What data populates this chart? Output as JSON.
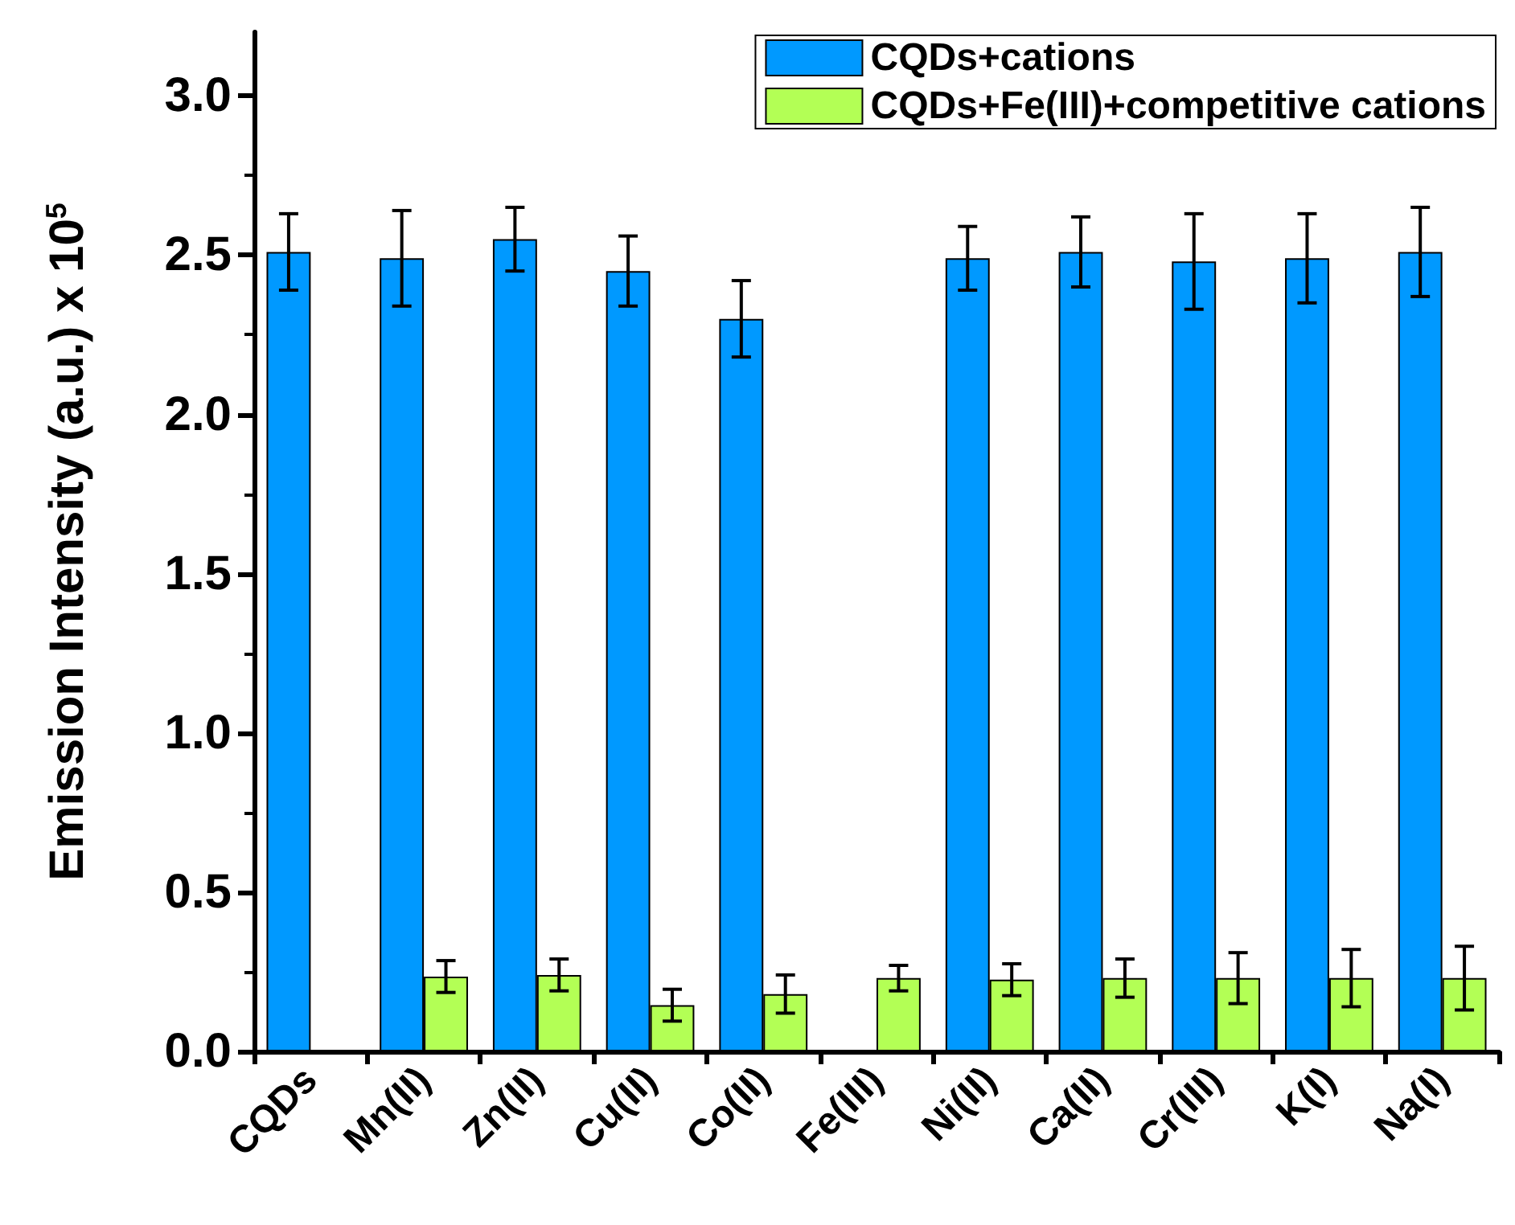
{
  "chart_data": {
    "type": "bar",
    "ylabel": "Emission Intensity (a.u.) x 10$^{5}$",
    "categories": [
      "CQDs",
      "Mn(II)",
      "Zn(II)",
      "Cu(II)",
      "Co(II)",
      "Fe(III)",
      "Ni(II)",
      "Ca(II)",
      "Cr(III)",
      "K(I)",
      "Na(I)"
    ],
    "series": [
      {
        "name": "CQDs+cations",
        "color": "#0099ff",
        "values": [
          2.51,
          2.49,
          2.55,
          2.45,
          2.3,
          null,
          2.49,
          2.51,
          2.48,
          2.49,
          2.51
        ],
        "errors": [
          0.12,
          0.15,
          0.1,
          0.11,
          0.12,
          null,
          0.1,
          0.11,
          0.15,
          0.14,
          0.14
        ]
      },
      {
        "name": "CQDs+Fe(III)+competitive cations",
        "color": "#b3ff55",
        "values": [
          null,
          0.235,
          0.24,
          0.145,
          0.18,
          0.23,
          0.225,
          0.23,
          0.23,
          0.23,
          0.23
        ],
        "errors": [
          null,
          0.05,
          0.05,
          0.05,
          0.06,
          0.04,
          0.05,
          0.06,
          0.08,
          0.09,
          0.1
        ]
      }
    ],
    "ylim": [
      0,
      3.2
    ],
    "yticks": [
      {
        "value": 0,
        "label": "0.0"
      },
      0.5,
      {
        "value": 1,
        "label": "1.0"
      },
      1.5,
      {
        "value": 2,
        "label": "2.0"
      },
      2.5,
      {
        "value": 3,
        "label": "3.0"
      }
    ],
    "grid": false,
    "legend": "top right"
  }
}
